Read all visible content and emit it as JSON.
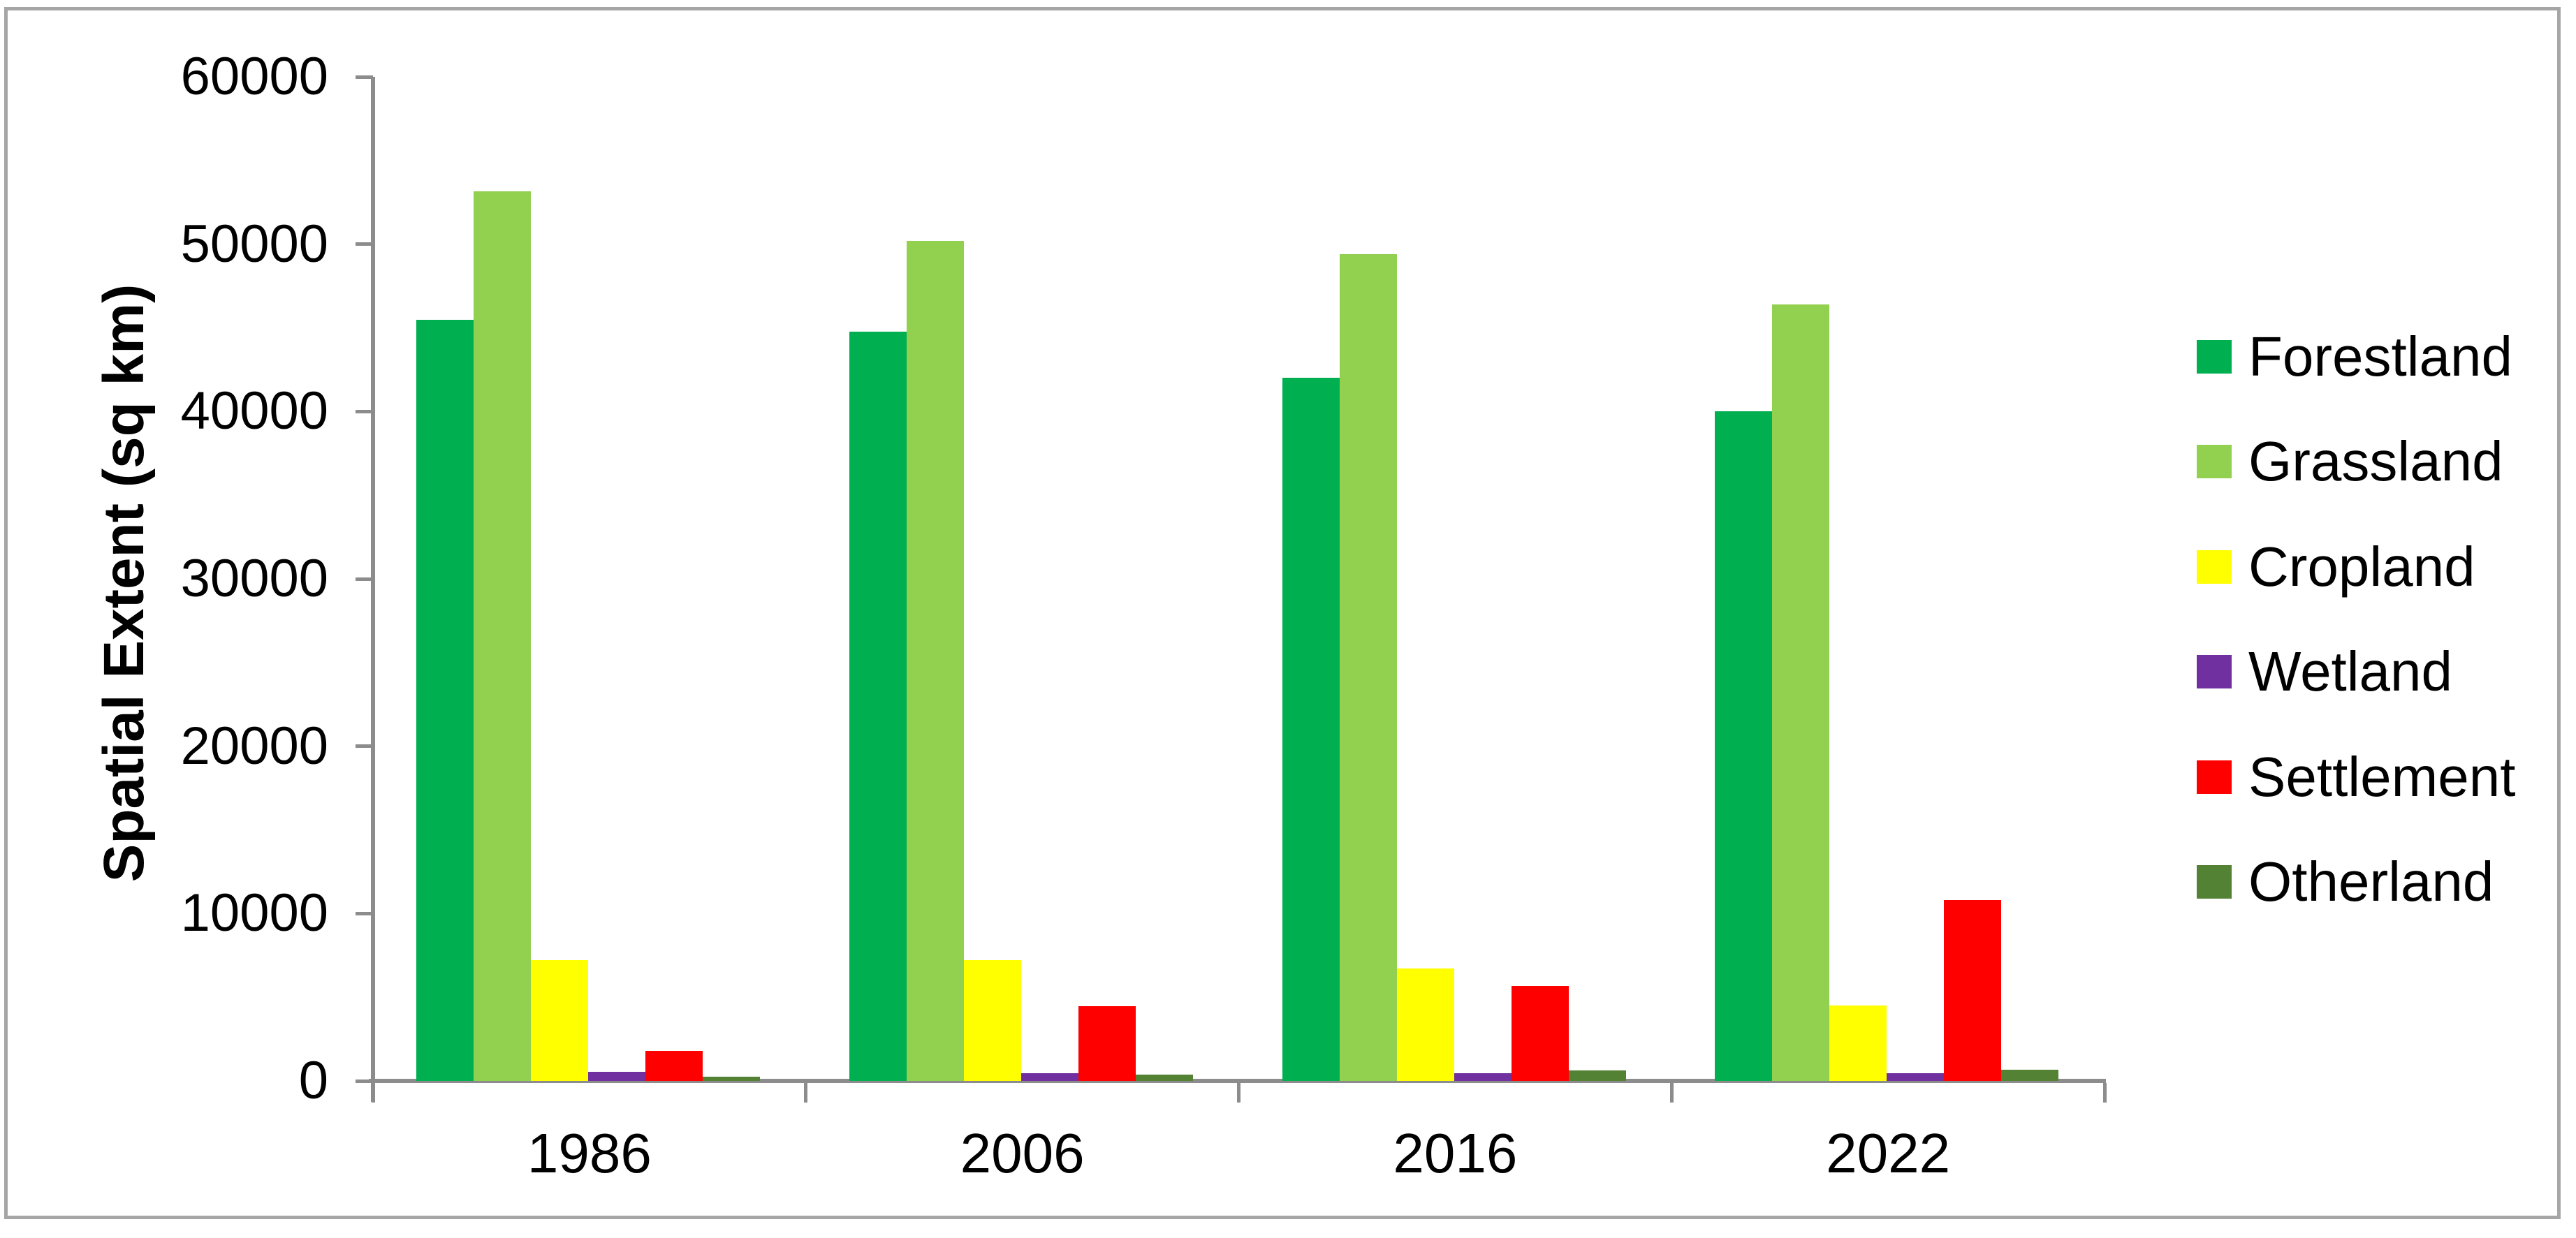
{
  "chart_data": {
    "type": "bar",
    "title": "",
    "xlabel": "",
    "ylabel": "Spatial Extent (sq km)",
    "ylim": [
      0,
      60000
    ],
    "ytick_step": 10000,
    "ytick_labels": [
      "0",
      "10000",
      "20000",
      "30000",
      "40000",
      "50000",
      "60000"
    ],
    "grid": false,
    "legend_position": "right",
    "categories": [
      "1986",
      "2006",
      "2016",
      "2022"
    ],
    "series": [
      {
        "name": "Forestland",
        "color": "#00B050",
        "values": [
          45500,
          44750,
          42000,
          40000
        ]
      },
      {
        "name": "Grassland",
        "color": "#92D050",
        "values": [
          53150,
          50200,
          49400,
          46400
        ]
      },
      {
        "name": "Cropland",
        "color": "#FFFF00",
        "values": [
          7200,
          7200,
          6700,
          4500
        ]
      },
      {
        "name": "Wetland",
        "color": "#7030A0",
        "values": [
          540,
          460,
          460,
          460
        ]
      },
      {
        "name": "Settlement",
        "color": "#FF0000",
        "values": [
          1800,
          4470,
          5680,
          10810
        ]
      },
      {
        "name": "Otherland",
        "color": "#548235",
        "values": [
          250,
          380,
          630,
          670
        ]
      }
    ],
    "axis_color": "#8C8C8C",
    "frame_border_color": "#A6A6A6"
  }
}
